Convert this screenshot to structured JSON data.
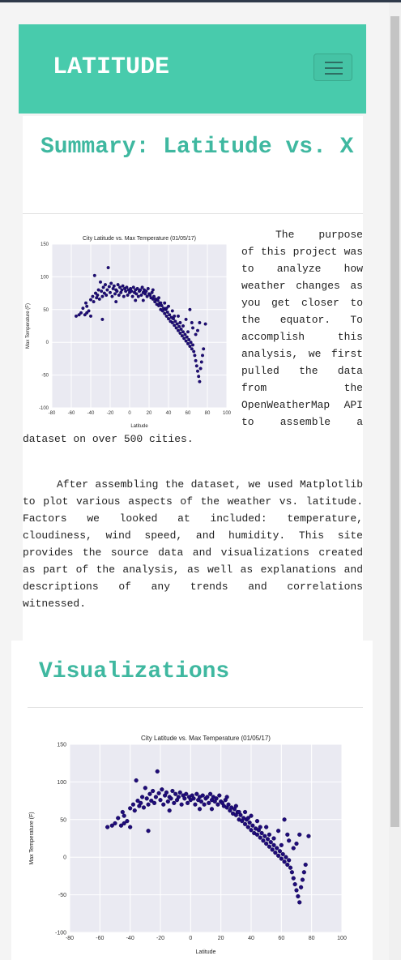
{
  "navbar": {
    "brand": "LATITUDE",
    "toggler_icon": "hamburger-icon"
  },
  "summary": {
    "title": "Summary: Latitude vs. X",
    "paragraph1": "The purpose of this project was to analyze how weather changes as you get closer to the equator. To accomplish this analysis, we first pulled the data from the OpenWeatherMap API to assemble a dataset on over 500 cities.",
    "paragraph2": "After assembling the dataset, we used Matplotlib to plot various aspects of the weather vs. latitude. Factors we looked at included: temperature, cloudiness, wind speed, and humidity. This site provides the source data and visualizations created as part of the analysis, as well as explanations and descriptions of any trends and correlations witnessed."
  },
  "visualizations": {
    "title": "Visualizations"
  },
  "colors": {
    "accent": "#48cbac",
    "heading": "#3fb8a0",
    "point": "#1f0b7a"
  },
  "chart_data": [
    {
      "type": "scatter",
      "title": "City Latitude vs. Max Temperature (01/05/17)",
      "xlabel": "Latitude",
      "ylabel": "Max Temperature (F)",
      "xlim": [
        -80,
        100
      ],
      "ylim": [
        -100,
        150
      ],
      "xticks": [
        -80,
        -60,
        -40,
        -20,
        0,
        20,
        40,
        60,
        80,
        100
      ],
      "yticks": [
        -100,
        -50,
        0,
        50,
        100,
        150
      ],
      "grid": true,
      "points": [
        [
          -55,
          40
        ],
        [
          -52,
          42
        ],
        [
          -50,
          45
        ],
        [
          -48,
          52
        ],
        [
          -45,
          60
        ],
        [
          -44,
          55
        ],
        [
          -42,
          48
        ],
        [
          -40,
          65
        ],
        [
          -38,
          70
        ],
        [
          -37,
          62
        ],
        [
          -36,
          102
        ],
        [
          -35,
          75
        ],
        [
          -34,
          68
        ],
        [
          -33,
          72
        ],
        [
          -32,
          80
        ],
        [
          -31,
          66
        ],
        [
          -30,
          92
        ],
        [
          -29,
          78
        ],
        [
          -28,
          70
        ],
        [
          -27,
          84
        ],
        [
          -26,
          75
        ],
        [
          -25,
          88
        ],
        [
          -24,
          72
        ],
        [
          -23,
          80
        ],
        [
          -22,
          114
        ],
        [
          -21,
          85
        ],
        [
          -20,
          76
        ],
        [
          -19,
          90
        ],
        [
          -18,
          70
        ],
        [
          -17,
          82
        ],
        [
          -16,
          86
        ],
        [
          -15,
          74
        ],
        [
          -14,
          80
        ],
        [
          -13,
          78
        ],
        [
          -12,
          88
        ],
        [
          -11,
          72
        ],
        [
          -10,
          84
        ],
        [
          -9,
          76
        ],
        [
          -8,
          80
        ],
        [
          -7,
          86
        ],
        [
          -6,
          70
        ],
        [
          -5,
          82
        ],
        [
          -4,
          78
        ],
        [
          -3,
          84
        ],
        [
          -2,
          72
        ],
        [
          -1,
          80
        ],
        [
          0,
          76
        ],
        [
          1,
          82
        ],
        [
          2,
          78
        ],
        [
          3,
          70
        ],
        [
          4,
          84
        ],
        [
          5,
          76
        ],
        [
          6,
          80
        ],
        [
          7,
          74
        ],
        [
          8,
          82
        ],
        [
          9,
          70
        ],
        [
          10,
          78
        ],
        [
          11,
          80
        ],
        [
          12,
          72
        ],
        [
          13,
          84
        ],
        [
          14,
          76
        ],
        [
          15,
          80
        ],
        [
          16,
          74
        ],
        [
          17,
          78
        ],
        [
          18,
          70
        ],
        [
          19,
          82
        ],
        [
          20,
          74
        ],
        [
          21,
          72
        ],
        [
          22,
          68
        ],
        [
          23,
          76
        ],
        [
          24,
          66
        ],
        [
          25,
          70
        ],
        [
          26,
          62
        ],
        [
          27,
          66
        ],
        [
          28,
          58
        ],
        [
          29,
          64
        ],
        [
          30,
          56
        ],
        [
          31,
          60
        ],
        [
          32,
          50
        ],
        [
          33,
          56
        ],
        [
          34,
          48
        ],
        [
          35,
          52
        ],
        [
          36,
          44
        ],
        [
          37,
          50
        ],
        [
          38,
          40
        ],
        [
          39,
          46
        ],
        [
          40,
          36
        ],
        [
          41,
          42
        ],
        [
          42,
          32
        ],
        [
          43,
          38
        ],
        [
          44,
          30
        ],
        [
          45,
          36
        ],
        [
          46,
          26
        ],
        [
          47,
          32
        ],
        [
          48,
          22
        ],
        [
          49,
          28
        ],
        [
          50,
          18
        ],
        [
          51,
          24
        ],
        [
          52,
          14
        ],
        [
          53,
          20
        ],
        [
          54,
          10
        ],
        [
          55,
          16
        ],
        [
          56,
          6
        ],
        [
          57,
          12
        ],
        [
          58,
          2
        ],
        [
          59,
          8
        ],
        [
          60,
          -2
        ],
        [
          61,
          4
        ],
        [
          62,
          -6
        ],
        [
          63,
          0
        ],
        [
          64,
          -10
        ],
        [
          65,
          -4
        ],
        [
          66,
          -14
        ],
        [
          67,
          -20
        ],
        [
          68,
          -28
        ],
        [
          69,
          -36
        ],
        [
          70,
          -44
        ],
        [
          71,
          -52
        ],
        [
          72,
          -60
        ],
        [
          73,
          -40
        ],
        [
          74,
          -30
        ],
        [
          75,
          -20
        ],
        [
          76,
          -10
        ],
        [
          78,
          28
        ],
        [
          62,
          50
        ],
        [
          58,
          35
        ],
        [
          50,
          40
        ],
        [
          44,
          48
        ],
        [
          36,
          60
        ],
        [
          30,
          68
        ],
        [
          -40,
          40
        ],
        [
          -44,
          45
        ],
        [
          -46,
          42
        ],
        [
          -28,
          35
        ],
        [
          -14,
          62
        ],
        [
          6,
          64
        ],
        [
          14,
          64
        ],
        [
          24,
          80
        ],
        [
          40,
          55
        ],
        [
          55,
          25
        ],
        [
          65,
          22
        ],
        [
          70,
          18
        ],
        [
          72,
          30
        ],
        [
          68,
          12
        ],
        [
          60,
          16
        ],
        [
          64,
          30
        ],
        [
          52,
          30
        ],
        [
          46,
          40
        ],
        [
          38,
          52
        ],
        [
          32,
          60
        ]
      ]
    },
    {
      "type": "scatter",
      "title": "City Latitude vs. Max Temperature (01/05/17)",
      "xlabel": "Latitude",
      "ylabel": "Max Temperature (F)",
      "xlim": [
        -80,
        100
      ],
      "ylim": [
        -100,
        150
      ],
      "xticks": [
        -80,
        -60,
        -40,
        -20,
        0,
        20,
        40,
        60,
        80,
        100
      ],
      "yticks": [
        -100,
        -50,
        0,
        50,
        100,
        150
      ],
      "grid": true,
      "points": [
        [
          -55,
          40
        ],
        [
          -52,
          42
        ],
        [
          -50,
          45
        ],
        [
          -48,
          52
        ],
        [
          -45,
          60
        ],
        [
          -44,
          55
        ],
        [
          -42,
          48
        ],
        [
          -40,
          65
        ],
        [
          -38,
          70
        ],
        [
          -37,
          62
        ],
        [
          -36,
          102
        ],
        [
          -35,
          75
        ],
        [
          -34,
          68
        ],
        [
          -33,
          72
        ],
        [
          -32,
          80
        ],
        [
          -31,
          66
        ],
        [
          -30,
          92
        ],
        [
          -29,
          78
        ],
        [
          -28,
          70
        ],
        [
          -27,
          84
        ],
        [
          -26,
          75
        ],
        [
          -25,
          88
        ],
        [
          -24,
          72
        ],
        [
          -23,
          80
        ],
        [
          -22,
          114
        ],
        [
          -21,
          85
        ],
        [
          -20,
          76
        ],
        [
          -19,
          90
        ],
        [
          -18,
          70
        ],
        [
          -17,
          82
        ],
        [
          -16,
          86
        ],
        [
          -15,
          74
        ],
        [
          -14,
          80
        ],
        [
          -13,
          78
        ],
        [
          -12,
          88
        ],
        [
          -11,
          72
        ],
        [
          -10,
          84
        ],
        [
          -9,
          76
        ],
        [
          -8,
          80
        ],
        [
          -7,
          86
        ],
        [
          -6,
          70
        ],
        [
          -5,
          82
        ],
        [
          -4,
          78
        ],
        [
          -3,
          84
        ],
        [
          -2,
          72
        ],
        [
          -1,
          80
        ],
        [
          0,
          76
        ],
        [
          1,
          82
        ],
        [
          2,
          78
        ],
        [
          3,
          70
        ],
        [
          4,
          84
        ],
        [
          5,
          76
        ],
        [
          6,
          80
        ],
        [
          7,
          74
        ],
        [
          8,
          82
        ],
        [
          9,
          70
        ],
        [
          10,
          78
        ],
        [
          11,
          80
        ],
        [
          12,
          72
        ],
        [
          13,
          84
        ],
        [
          14,
          76
        ],
        [
          15,
          80
        ],
        [
          16,
          74
        ],
        [
          17,
          78
        ],
        [
          18,
          70
        ],
        [
          19,
          82
        ],
        [
          20,
          74
        ],
        [
          21,
          72
        ],
        [
          22,
          68
        ],
        [
          23,
          76
        ],
        [
          24,
          66
        ],
        [
          25,
          70
        ],
        [
          26,
          62
        ],
        [
          27,
          66
        ],
        [
          28,
          58
        ],
        [
          29,
          64
        ],
        [
          30,
          56
        ],
        [
          31,
          60
        ],
        [
          32,
          50
        ],
        [
          33,
          56
        ],
        [
          34,
          48
        ],
        [
          35,
          52
        ],
        [
          36,
          44
        ],
        [
          37,
          50
        ],
        [
          38,
          40
        ],
        [
          39,
          46
        ],
        [
          40,
          36
        ],
        [
          41,
          42
        ],
        [
          42,
          32
        ],
        [
          43,
          38
        ],
        [
          44,
          30
        ],
        [
          45,
          36
        ],
        [
          46,
          26
        ],
        [
          47,
          32
        ],
        [
          48,
          22
        ],
        [
          49,
          28
        ],
        [
          50,
          18
        ],
        [
          51,
          24
        ],
        [
          52,
          14
        ],
        [
          53,
          20
        ],
        [
          54,
          10
        ],
        [
          55,
          16
        ],
        [
          56,
          6
        ],
        [
          57,
          12
        ],
        [
          58,
          2
        ],
        [
          59,
          8
        ],
        [
          60,
          -2
        ],
        [
          61,
          4
        ],
        [
          62,
          -6
        ],
        [
          63,
          0
        ],
        [
          64,
          -10
        ],
        [
          65,
          -4
        ],
        [
          66,
          -14
        ],
        [
          67,
          -20
        ],
        [
          68,
          -28
        ],
        [
          69,
          -36
        ],
        [
          70,
          -44
        ],
        [
          71,
          -52
        ],
        [
          72,
          -60
        ],
        [
          73,
          -40
        ],
        [
          74,
          -30
        ],
        [
          75,
          -20
        ],
        [
          76,
          -10
        ],
        [
          78,
          28
        ],
        [
          62,
          50
        ],
        [
          58,
          35
        ],
        [
          50,
          40
        ],
        [
          44,
          48
        ],
        [
          36,
          60
        ],
        [
          30,
          68
        ],
        [
          -40,
          40
        ],
        [
          -44,
          45
        ],
        [
          -46,
          42
        ],
        [
          -28,
          35
        ],
        [
          -14,
          62
        ],
        [
          6,
          64
        ],
        [
          14,
          64
        ],
        [
          24,
          80
        ],
        [
          40,
          55
        ],
        [
          55,
          25
        ],
        [
          65,
          22
        ],
        [
          70,
          18
        ],
        [
          72,
          30
        ],
        [
          68,
          12
        ],
        [
          60,
          16
        ],
        [
          64,
          30
        ],
        [
          52,
          30
        ],
        [
          46,
          40
        ],
        [
          38,
          52
        ],
        [
          32,
          60
        ]
      ]
    }
  ]
}
